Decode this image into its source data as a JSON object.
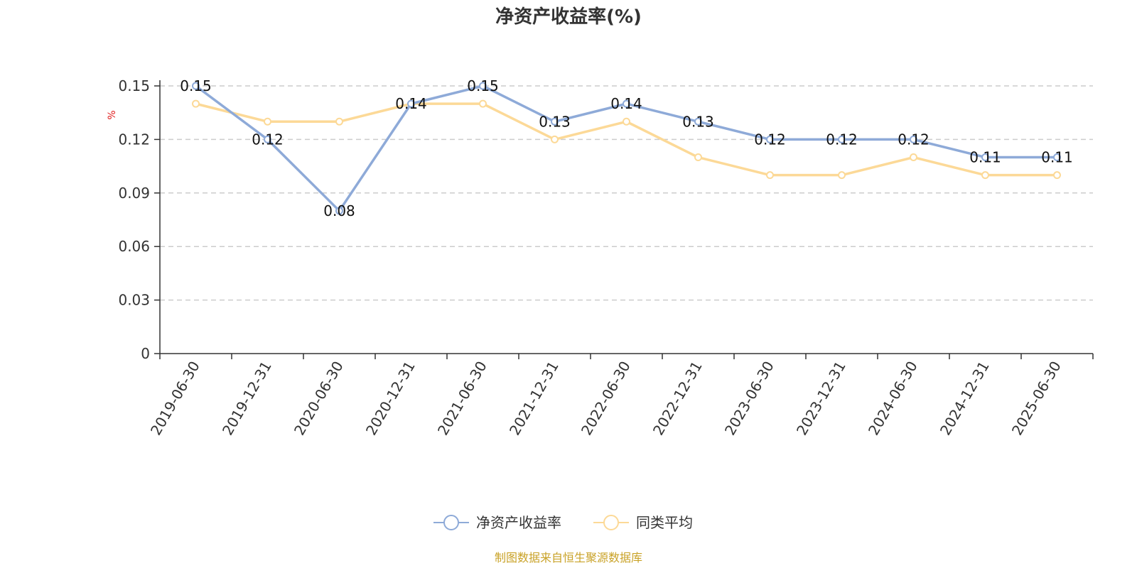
{
  "chart_data": {
    "type": "line",
    "title": "净资产收益率(%)",
    "ylabel": "%",
    "ylim": [
      0,
      0.15
    ],
    "yticks": [
      "0",
      "0.03",
      "0.06",
      "0.09",
      "0.12",
      "0.15"
    ],
    "yticks_values": [
      0,
      0.03,
      0.06,
      0.09,
      0.12,
      0.15
    ],
    "categories": [
      "2019-06-30",
      "2019-12-31",
      "2020-06-30",
      "2020-12-31",
      "2021-06-30",
      "2021-12-31",
      "2022-06-30",
      "2022-12-31",
      "2023-06-30",
      "2023-12-31",
      "2024-06-30",
      "2024-12-31",
      "2025-06-30"
    ],
    "series": [
      {
        "name": "净资产收益率",
        "color": "#8eaad8",
        "values": [
          0.15,
          0.12,
          0.08,
          0.14,
          0.15,
          0.13,
          0.14,
          0.13,
          0.12,
          0.12,
          0.12,
          0.11,
          0.11
        ],
        "labels": [
          "0.15",
          "0.12",
          "0.08",
          "0.14",
          "0.15",
          "0.13",
          "0.14",
          "0.13",
          "0.12",
          "0.12",
          "0.12",
          "0.11",
          "0.11"
        ]
      },
      {
        "name": "同类平均",
        "color": "#fcd997",
        "values": [
          0.14,
          0.13,
          0.13,
          0.14,
          0.14,
          0.12,
          0.13,
          0.11,
          0.1,
          0.1,
          0.11,
          0.1,
          0.1
        ]
      }
    ],
    "grid": true,
    "legend_position": "bottom-center"
  },
  "source_text": "制图数据来自恒生聚源数据库"
}
